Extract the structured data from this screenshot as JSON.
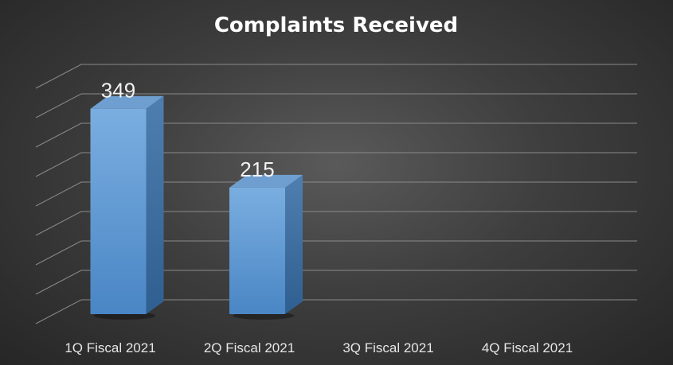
{
  "chart_data": {
    "type": "bar",
    "style": "3d-column",
    "title": "Complaints Received",
    "xlabel": "",
    "ylabel": "",
    "categories": [
      "1Q Fiscal 2021",
      "2Q Fiscal 2021",
      "3Q Fiscal 2021",
      "4Q Fiscal 2021"
    ],
    "values": [
      349,
      215,
      null,
      null
    ],
    "data_labels": [
      "349",
      "215",
      "",
      ""
    ],
    "ylim": [
      0,
      400
    ],
    "grid": true,
    "legend": "none",
    "colors": {
      "bar": "#5b9bd5",
      "background": "#404040",
      "text": "#ffffff"
    }
  }
}
